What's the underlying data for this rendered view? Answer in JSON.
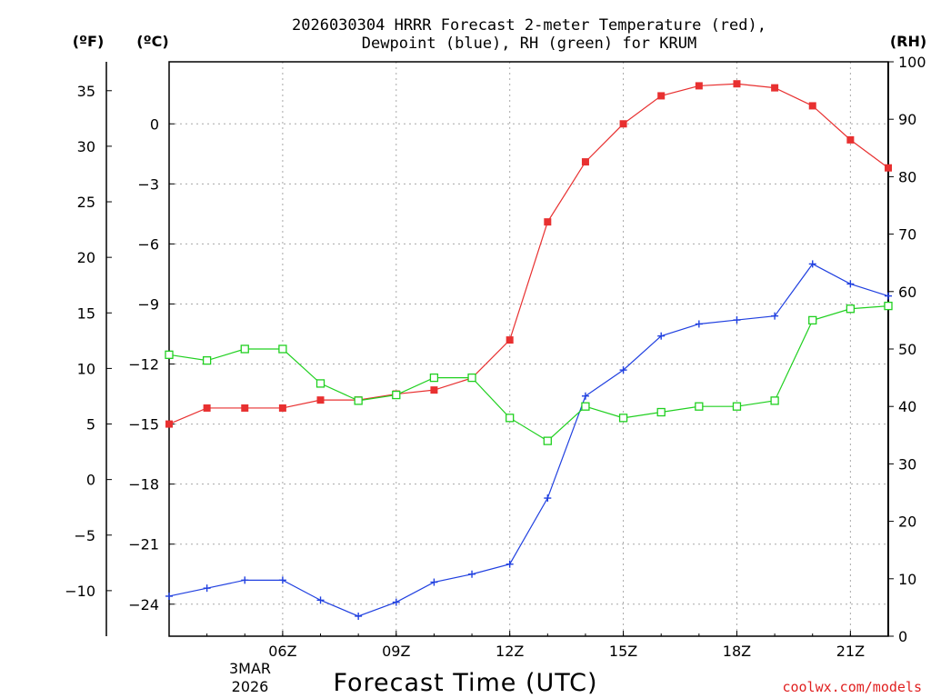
{
  "title_line1": "2026030304 HRRR Forecast 2-meter Temperature (red),",
  "title_line2": "Dewpoint (blue), RH (green) for KRUM",
  "units": {
    "fahrenheit": "(ºF)",
    "celsius": "(ºC)",
    "rh": "(RH)"
  },
  "x_axis_title": "Forecast Time (UTC)",
  "date_label_line1": "3MAR",
  "date_label_line2": "2026",
  "credit": "coolwx.com/models",
  "chart_data": {
    "type": "line",
    "x_hours": [
      3,
      4,
      5,
      6,
      7,
      8,
      9,
      10,
      11,
      12,
      13,
      14,
      15,
      16,
      17,
      18,
      19,
      20,
      21,
      22
    ],
    "x_range": [
      3,
      22
    ],
    "x_ticks": [
      {
        "hour": 6,
        "label": "06Z"
      },
      {
        "hour": 9,
        "label": "09Z"
      },
      {
        "hour": 12,
        "label": "12Z"
      },
      {
        "hour": 15,
        "label": "15Z"
      },
      {
        "hour": 18,
        "label": "18Z"
      },
      {
        "hour": 21,
        "label": "21Z"
      }
    ],
    "axis_celsius": {
      "range": [
        -25.6,
        3.1
      ],
      "ticks": [
        0,
        -3,
        -6,
        -9,
        -12,
        -15,
        -18,
        -21,
        -24
      ]
    },
    "axis_fahrenheit": {
      "range": [
        -14.1,
        37.6
      ],
      "ticks": [
        35,
        30,
        25,
        20,
        15,
        10,
        5,
        0,
        -5,
        -10
      ]
    },
    "axis_rh": {
      "range": [
        0,
        100
      ],
      "ticks": [
        0,
        10,
        20,
        30,
        40,
        50,
        60,
        70,
        80,
        90,
        100
      ]
    },
    "grid": true,
    "series": [
      {
        "name": "Temperature",
        "unit": "celsius",
        "color": "#e83030",
        "marker": "filled-square",
        "values": [
          -15.0,
          -14.2,
          -14.2,
          -14.2,
          -13.8,
          -13.8,
          -13.5,
          -13.3,
          -12.7,
          -10.8,
          -4.9,
          -1.9,
          0.0,
          1.4,
          1.9,
          2.0,
          1.8,
          0.9,
          -0.8,
          null
        ]
      },
      {
        "name": "Dewpoint",
        "unit": "celsius",
        "color": "#2040e0",
        "marker": "plus",
        "values": [
          -23.6,
          -23.2,
          -22.8,
          -22.8,
          -23.8,
          -24.6,
          -23.9,
          -22.9,
          -22.5,
          -22.0,
          -18.7,
          -13.6,
          -12.3,
          -10.6,
          -10.0,
          -9.8,
          -9.6,
          -7.0,
          -8.0,
          null
        ]
      },
      {
        "name": "RH",
        "unit": "rh",
        "color": "#20d020",
        "marker": "open-square",
        "values": [
          49,
          48,
          50,
          50,
          44,
          41,
          42,
          45,
          45,
          38,
          34,
          40,
          38,
          39,
          40,
          40,
          41,
          55,
          57,
          null
        ]
      }
    ]
  }
}
